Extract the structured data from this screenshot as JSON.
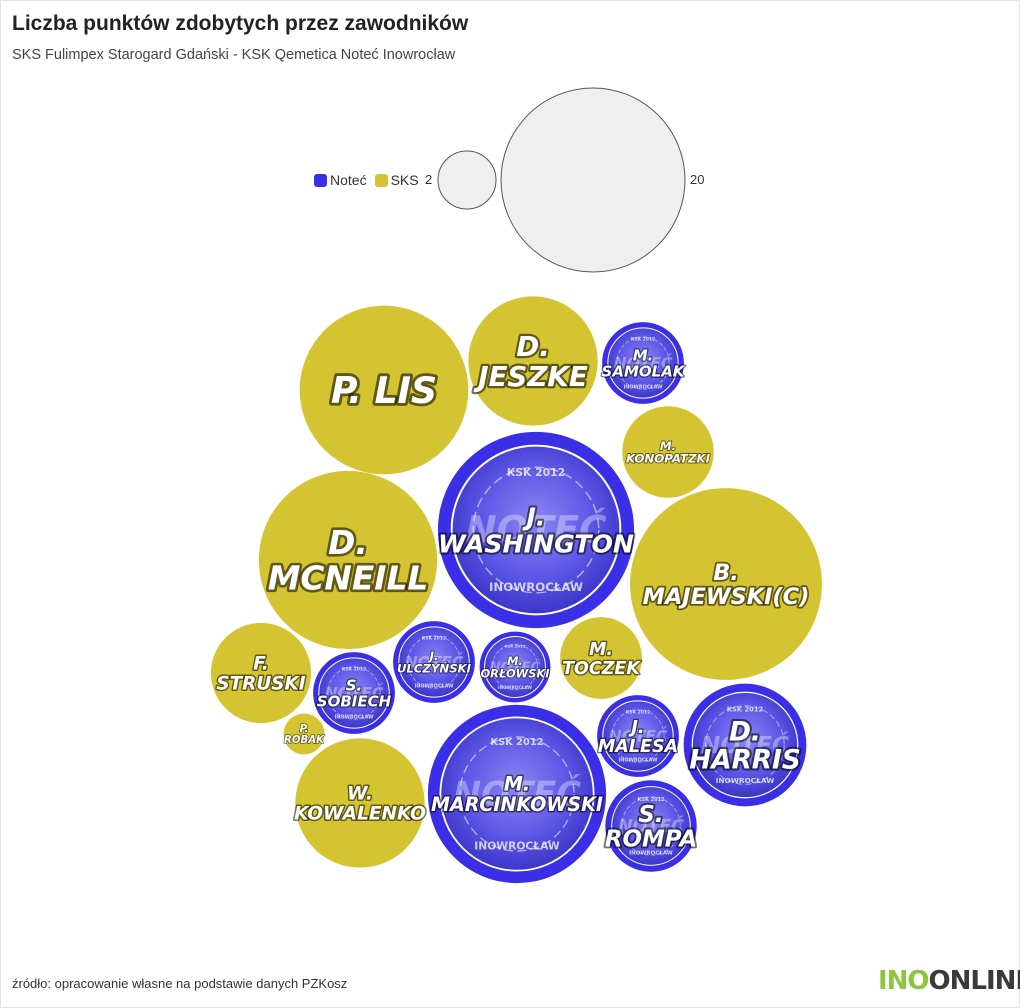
{
  "title": "Liczba punktów zdobytych przez zawodników",
  "subtitle": "SKS Fulimpex Starogard Gdański - KSK Qemetica Noteć Inowrocław",
  "source": "źródło: opracowanie własne na podstawie danych PZKosz",
  "logo": {
    "part1": "INO",
    "part2": "ONLINE"
  },
  "colors": {
    "notec": "#3a2fe6",
    "sks": "#d4c431",
    "notec_fill": "#5b55e8",
    "size_ref": "#efefef"
  },
  "legend": [
    {
      "label": "Noteć",
      "color": "#3a2fe6"
    },
    {
      "label": "SKS",
      "color": "#d4c431"
    }
  ],
  "size_legend": {
    "small": "2",
    "large": "20"
  },
  "badge_text": {
    "top": "KSK 2012",
    "word": "NOTEĆ",
    "bottom": "INOWROCŁAW"
  },
  "chart_data": {
    "type": "bubble",
    "title": "Liczba punktów zdobytych przez zawodników",
    "subtitle": "SKS Fulimpex Starogard Gdański - KSK Qemetica Noteć Inowrocław",
    "series": [
      {
        "name": "Noteć",
        "color": "#3a2fe6"
      },
      {
        "name": "SKS",
        "color": "#d4c431"
      }
    ],
    "size_reference": [
      2,
      20
    ],
    "points": [
      {
        "label": "P. LIS",
        "lines": [
          "P. LIS"
        ],
        "team": "SKS",
        "value": 17
      },
      {
        "label": "D. JESZKE",
        "lines": [
          "D.",
          "JESZKE"
        ],
        "team": "SKS",
        "value": 10
      },
      {
        "label": "M. SAMOLAK",
        "lines": [
          "M.",
          "SAMOLAK"
        ],
        "team": "Noteć",
        "value": 4
      },
      {
        "label": "M. KONOPATZKI",
        "lines": [
          "M.",
          "KONOPATZKI"
        ],
        "team": "SKS",
        "value": 5
      },
      {
        "label": "J. WASHINGTON",
        "lines": [
          "J.",
          "WASHINGTON"
        ],
        "team": "Noteć",
        "value": 23
      },
      {
        "label": "D. MCNEILL",
        "lines": [
          "D.",
          "MCNEILL"
        ],
        "team": "SKS",
        "value": 19
      },
      {
        "label": "B. MAJEWSKI(C)",
        "lines": [
          "B.",
          "MAJEWSKI(C)"
        ],
        "team": "SKS",
        "value": 22
      },
      {
        "label": "F. STRUSKI",
        "lines": [
          "F.",
          "STRUSKI"
        ],
        "team": "SKS",
        "value": 6
      },
      {
        "label": "S. SOBIECH",
        "lines": [
          "S.",
          "SOBIECH"
        ],
        "team": "Noteć",
        "value": 4
      },
      {
        "label": "J. ULCZYŃSKI",
        "lines": [
          "J.",
          "ULCZYŃSKI"
        ],
        "team": "Noteć",
        "value": 4
      },
      {
        "label": "M. ORŁOWSKI",
        "lines": [
          "M.",
          "ORŁOWSKI"
        ],
        "team": "Noteć",
        "value": 3
      },
      {
        "label": "M. TOCZEK",
        "lines": [
          "M.",
          "TOCZEK"
        ],
        "team": "SKS",
        "value": 4
      },
      {
        "label": "J. MALESA",
        "lines": [
          "J.",
          "MALESA"
        ],
        "team": "Noteć",
        "value": 4
      },
      {
        "label": "D. HARRIS",
        "lines": [
          "D.",
          "HARRIS"
        ],
        "team": "Noteć",
        "value": 9
      },
      {
        "label": "P. ROBAK",
        "lines": [
          "P.",
          "ROBAK"
        ],
        "team": "SKS",
        "value": 1
      },
      {
        "label": "W. KOWALENKO",
        "lines": [
          "W.",
          "KOWALENKO"
        ],
        "team": "SKS",
        "value": 10
      },
      {
        "label": "M. MARCINKOWSKI",
        "lines": [
          "M.",
          "MARCINKOWSKI"
        ],
        "team": "Noteć",
        "value": 19
      },
      {
        "label": "S. ROMPA",
        "lines": [
          "S.",
          "ROMPA"
        ],
        "team": "Noteć",
        "value": 5
      }
    ]
  }
}
